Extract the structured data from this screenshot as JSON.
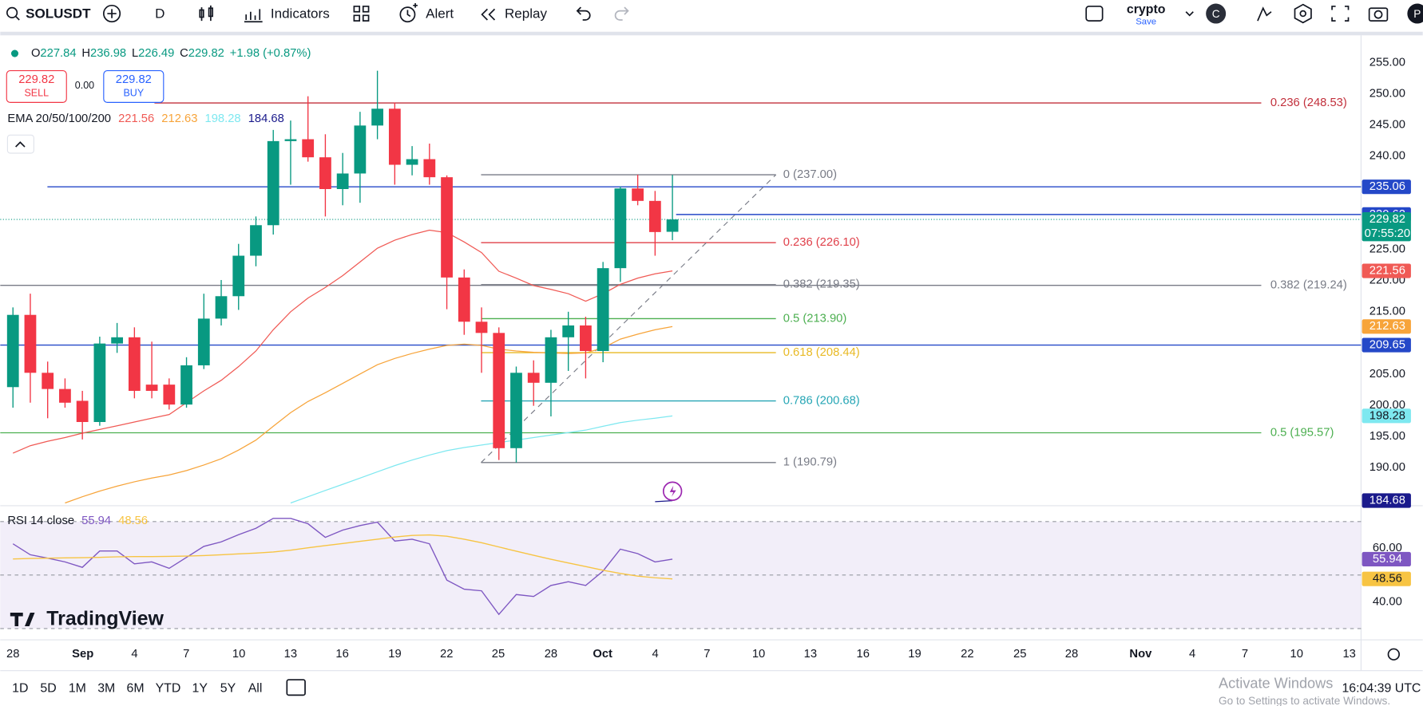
{
  "toolbar": {
    "symbol": "SOLUSDT",
    "interval": "D",
    "indicators": "Indicators",
    "alert": "Alert",
    "replay": "Replay",
    "layout_name": "crypto",
    "save": "Save",
    "avatar_c": "C",
    "avatar_p": "P"
  },
  "legend": {
    "ohlc_labels": [
      "O",
      "H",
      "L",
      "C"
    ],
    "change": "+1.98 (+0.87%)",
    "sell_price": 229.82,
    "sell_label": "SELL",
    "spread": "0.00",
    "buy_price": 229.82,
    "buy_label": "BUY",
    "ema_title": "EMA 20/50/100/200",
    "rsi_title": "RSI 14 close"
  },
  "bottom_bar": {
    "ranges": [
      "1D",
      "5D",
      "1M",
      "3M",
      "6M",
      "YTD",
      "1Y",
      "5Y",
      "All"
    ],
    "clock": "16:04:39 UTC",
    "watermark_title": "Activate Windows",
    "watermark_text": "Go to Settings to activate Windows.",
    "logo": "TradingView"
  },
  "chart_data": [
    {
      "type": "candlestick",
      "open": [
        202.9,
        214.5,
        205.2,
        202.6,
        200.7,
        197.3,
        209.9,
        210.9,
        203.3,
        203.3,
        200.1,
        206.4,
        213.9,
        217.5,
        224.0,
        228.9,
        242.4,
        242.7,
        239.8,
        234.7,
        237.2,
        244.9,
        247.6,
        238.6,
        239.5,
        236.6,
        220.5,
        213.4,
        211.6,
        193.1,
        205.2,
        203.6,
        210.9,
        212.8,
        208.7,
        222.0,
        234.8,
        232.8,
        227.84
      ],
      "high": [
        215.7,
        217.9,
        207.0,
        204.3,
        202.3,
        211.0,
        213.2,
        212.5,
        210.2,
        204.3,
        207.7,
        217.9,
        220.1,
        225.9,
        230.3,
        244.2,
        245.7,
        249.6,
        243.5,
        240.5,
        247.1,
        253.7,
        248.6,
        241.6,
        242.0,
        236.9,
        221.8,
        215.7,
        212.5,
        206.2,
        207.2,
        212.1,
        215.0,
        214.2,
        223.0,
        235.1,
        237.0,
        234.4,
        236.98
      ],
      "low": [
        199.6,
        200.4,
        197.9,
        199.6,
        194.5,
        196.7,
        208.4,
        201.1,
        201.1,
        199.3,
        199.6,
        205.8,
        212.8,
        215.3,
        222.3,
        227.4,
        235.4,
        239.1,
        230.3,
        232.1,
        232.5,
        242.7,
        235.4,
        236.9,
        235.4,
        215.4,
        211.3,
        205.2,
        191.2,
        190.79,
        199.9,
        198.2,
        205.5,
        204.3,
        206.9,
        219.8,
        232.1,
        224.0,
        226.49
      ],
      "close": [
        214.5,
        205.2,
        202.6,
        200.4,
        197.3,
        209.9,
        210.9,
        202.3,
        202.3,
        200.1,
        206.4,
        213.9,
        217.5,
        224.0,
        228.9,
        242.4,
        242.7,
        239.8,
        234.7,
        237.2,
        244.9,
        247.6,
        238.6,
        239.5,
        236.6,
        220.5,
        213.4,
        211.6,
        193.1,
        205.2,
        203.6,
        210.9,
        212.8,
        208.7,
        222.0,
        234.8,
        232.8,
        227.8,
        229.82
      ],
      "up_color": "#089981",
      "down_color": "#f23645",
      "countdown": "07:55:20",
      "series": [
        {
          "color": "#f05a55",
          "values": [
            192.3,
            193.5,
            194.2,
            194.8,
            195.5,
            196.1,
            196.7,
            197.3,
            197.9,
            198.5,
            200.4,
            202.3,
            204.0,
            206.2,
            208.7,
            212.1,
            215.0,
            217.2,
            218.9,
            220.8,
            223.0,
            225.2,
            226.5,
            227.4,
            228.1,
            227.7,
            226.2,
            224.5,
            221.5,
            220.4,
            219.2,
            218.6,
            217.9,
            216.7,
            217.9,
            219.4,
            220.4,
            221.1,
            221.56
          ]
        },
        {
          "color": "#f7a43a",
          "values": [
            null,
            null,
            null,
            184.3,
            185.3,
            186.2,
            187.0,
            187.7,
            188.3,
            188.8,
            189.5,
            190.4,
            191.4,
            192.8,
            194.4,
            196.6,
            198.8,
            200.6,
            202.0,
            203.5,
            205.0,
            206.5,
            207.5,
            208.3,
            209.0,
            209.6,
            209.8,
            209.6,
            209.0,
            208.7,
            208.5,
            208.4,
            208.3,
            208.4,
            209.2,
            210.6,
            211.4,
            212.1,
            212.63
          ]
        },
        {
          "color": "#7ee8f0",
          "values": [
            null,
            null,
            null,
            null,
            null,
            null,
            null,
            null,
            null,
            null,
            null,
            null,
            null,
            null,
            null,
            null,
            184.3,
            185.3,
            186.3,
            187.3,
            188.3,
            189.3,
            190.3,
            191.2,
            192.0,
            192.7,
            193.2,
            193.6,
            194.0,
            194.4,
            194.8,
            195.2,
            195.6,
            196.0,
            196.6,
            197.2,
            197.6,
            197.9,
            198.28
          ]
        },
        {
          "color": "#1a1a8c",
          "values": [
            null,
            null,
            null,
            null,
            null,
            null,
            null,
            null,
            null,
            null,
            null,
            null,
            null,
            null,
            null,
            null,
            null,
            null,
            null,
            null,
            null,
            null,
            null,
            null,
            null,
            null,
            null,
            null,
            null,
            null,
            null,
            null,
            null,
            null,
            null,
            null,
            null,
            184.5,
            184.68
          ]
        }
      ],
      "ylim": [
        183.86,
        259.38
      ],
      "yticks": [
        {
          "value": 255,
          "label": "255.00"
        },
        {
          "value": 250,
          "label": "250.00"
        },
        {
          "value": 245,
          "label": "245.00"
        },
        {
          "value": 240,
          "label": "240.00"
        },
        {
          "value": 235,
          "label": "235.00"
        },
        {
          "value": 225,
          "label": "225.00"
        },
        {
          "value": 220,
          "label": "220.00"
        },
        {
          "value": 215,
          "label": "215.00"
        },
        {
          "value": 205,
          "label": "205.00"
        },
        {
          "value": 200,
          "label": "200.00"
        },
        {
          "value": 195,
          "label": "195.00"
        },
        {
          "value": 190,
          "label": "190.00"
        }
      ],
      "price_lines": [
        {
          "value": 235.06,
          "color": "#2448c8"
        },
        {
          "value": 230.62,
          "color": "#2448c8"
        },
        {
          "value": 209.65,
          "color": "#2448c8"
        }
      ],
      "fib_short": [
        {
          "value": 237.0,
          "label": "0 (237.00)",
          "color": "#787b86"
        },
        {
          "value": 226.1,
          "label": "0.236 (226.10)",
          "color": "#e0404a"
        },
        {
          "value": 219.35,
          "label": "0.382 (219.35)",
          "color": "#787b86"
        },
        {
          "value": 213.9,
          "label": "0.5 (213.90)",
          "color": "#4caf50"
        },
        {
          "value": 208.44,
          "label": "0.618 (208.44)",
          "color": "#e8b923"
        },
        {
          "value": 200.68,
          "label": "0.786 (200.68)",
          "color": "#26a6b5"
        },
        {
          "value": 190.79,
          "label": "1 (190.79)",
          "color": "#787b86"
        }
      ],
      "fib_long": [
        {
          "value": 248.53,
          "label": "0.236 (248.53)",
          "color": "#c2303c"
        },
        {
          "value": 219.24,
          "label": "0.382 (219.24)",
          "color": "#787b86"
        },
        {
          "value": 195.57,
          "label": "0.5 (195.57)",
          "color": "#4caf50"
        }
      ],
      "x_labels": [
        "28",
        "Sep",
        "4",
        "7",
        "10",
        "13",
        "16",
        "19",
        "22",
        "25",
        "28",
        "Oct",
        "4",
        "7",
        "10",
        "13",
        "16",
        "19",
        "22",
        "25",
        "28",
        "Nov",
        "4",
        "7",
        "10",
        "13"
      ]
    },
    {
      "type": "line",
      "series": [
        {
          "color": "#7e57c2",
          "values": [
            61.7,
            57.6,
            56.3,
            54.9,
            52.9,
            59.0,
            59.0,
            54.2,
            54.9,
            52.5,
            56.6,
            60.7,
            62.4,
            65.1,
            67.5,
            71.2,
            71.2,
            69.2,
            64.1,
            66.8,
            68.5,
            69.8,
            62.7,
            63.4,
            61.7,
            48.1,
            44.7,
            44.1,
            35.3,
            42.7,
            42.0,
            46.1,
            47.5,
            46.1,
            51.5,
            59.7,
            58.0,
            54.9,
            55.94
          ]
        },
        {
          "color": "#f7c443",
          "values": [
            56.0,
            56.2,
            56.3,
            56.4,
            56.5,
            56.6,
            56.8,
            56.9,
            56.9,
            57.0,
            57.1,
            57.3,
            57.6,
            57.9,
            58.2,
            58.6,
            59.3,
            60.2,
            61.0,
            61.8,
            62.6,
            63.4,
            64.2,
            64.8,
            65.0,
            64.5,
            63.4,
            62.1,
            60.5,
            58.9,
            57.4,
            55.9,
            54.5,
            53.2,
            51.8,
            50.6,
            49.6,
            49.0,
            48.56
          ]
        }
      ],
      "levels": [
        70,
        50,
        30
      ],
      "ylim": [
        29.5,
        75.25
      ],
      "yticks": [
        {
          "value": 60,
          "label": "60.00"
        },
        {
          "value": 40,
          "label": "40.00"
        }
      ]
    }
  ]
}
